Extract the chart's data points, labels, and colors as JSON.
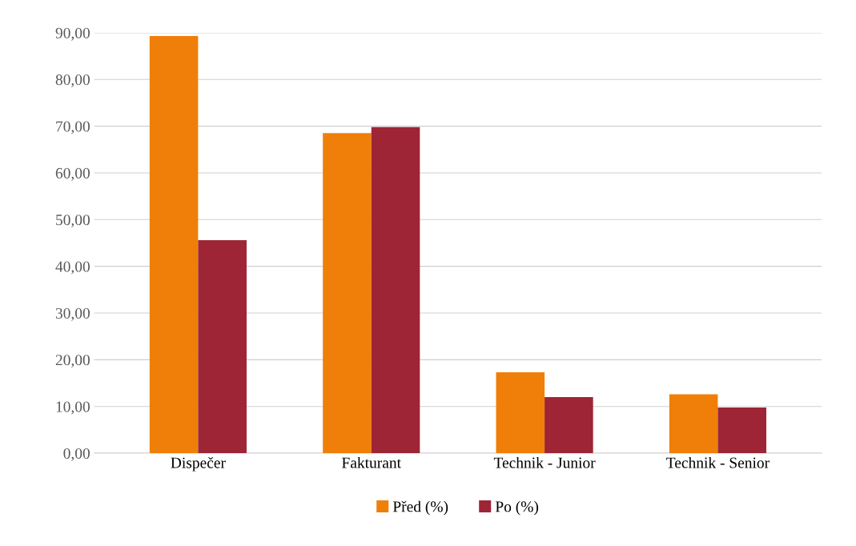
{
  "chart_data": {
    "type": "bar",
    "categories": [
      "Dispečer",
      "Fakturant",
      "Technik - Junior",
      "Technik - Senior"
    ],
    "series": [
      {
        "name": "Před (%)",
        "color": "#f07f09",
        "values": [
          89.3,
          68.5,
          17.3,
          12.6
        ]
      },
      {
        "name": "Po (%)",
        "color": "#9e2535",
        "values": [
          45.6,
          69.8,
          12.0,
          9.8
        ]
      }
    ],
    "ylim": [
      0,
      90
    ],
    "yticks": [
      {
        "value": 0,
        "label": "0,00"
      },
      {
        "value": 10,
        "label": "10,00"
      },
      {
        "value": 20,
        "label": "20,00"
      },
      {
        "value": 30,
        "label": "30,00"
      },
      {
        "value": 40,
        "label": "40,00"
      },
      {
        "value": 50,
        "label": "50,00"
      },
      {
        "value": 60,
        "label": "60,00"
      },
      {
        "value": 70,
        "label": "70,00"
      },
      {
        "value": 80,
        "label": "80,00"
      },
      {
        "value": 90,
        "label": "90,00"
      }
    ],
    "grid": "y",
    "legend": "bottom"
  }
}
